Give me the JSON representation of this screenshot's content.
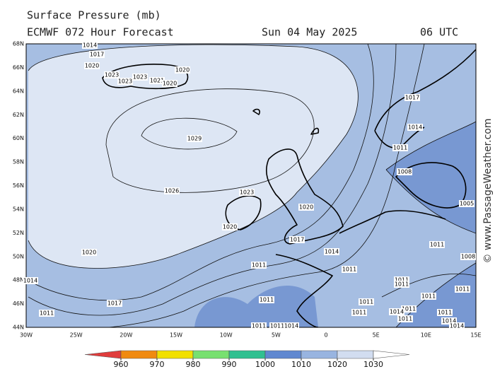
{
  "header": {
    "title": "Surface Pressure (mb)",
    "model": "ECMWF 072 Hour Forecast",
    "date": "Sun 04 May 2025",
    "time": "06 UTC"
  },
  "lat_labels": [
    "68N",
    "66N",
    "64N",
    "62N",
    "60N",
    "58N",
    "56N",
    "54N",
    "52N",
    "50N",
    "48N",
    "46N",
    "44N"
  ],
  "lon_labels": [
    "30W",
    "25W",
    "20W",
    "15W",
    "10W",
    "5W",
    "0",
    "5E",
    "10E",
    "15E"
  ],
  "isobar_labels": [
    "1014",
    "1017",
    "1020",
    "1023",
    "1023",
    "1023",
    "1020",
    "1021",
    "1020",
    "1029",
    "1026",
    "1023",
    "1020",
    "1020",
    "1017",
    "1014",
    "1020",
    "1011",
    "1011",
    "1014",
    "1017",
    "1011",
    "1011",
    "1011",
    "1011",
    "1017",
    "1014",
    "1011",
    "1008",
    "1005",
    "1011",
    "1008",
    "1011",
    "1011",
    "1011",
    "1011",
    "1011",
    "1014",
    "1011",
    "1011",
    "1014",
    "1014",
    "1011",
    "1011",
    "1014"
  ],
  "colorbar": {
    "levels": [
      960,
      970,
      980,
      990,
      1000,
      1010,
      1020,
      1030
    ],
    "colors": [
      "#e03c3c",
      "#f08a10",
      "#f2e000",
      "#78e070",
      "#30c090",
      "#6088d0",
      "#98b4e0",
      "#d2ddf0",
      "#ffffff"
    ]
  },
  "copyright": "© www.PassageWeather.com"
}
